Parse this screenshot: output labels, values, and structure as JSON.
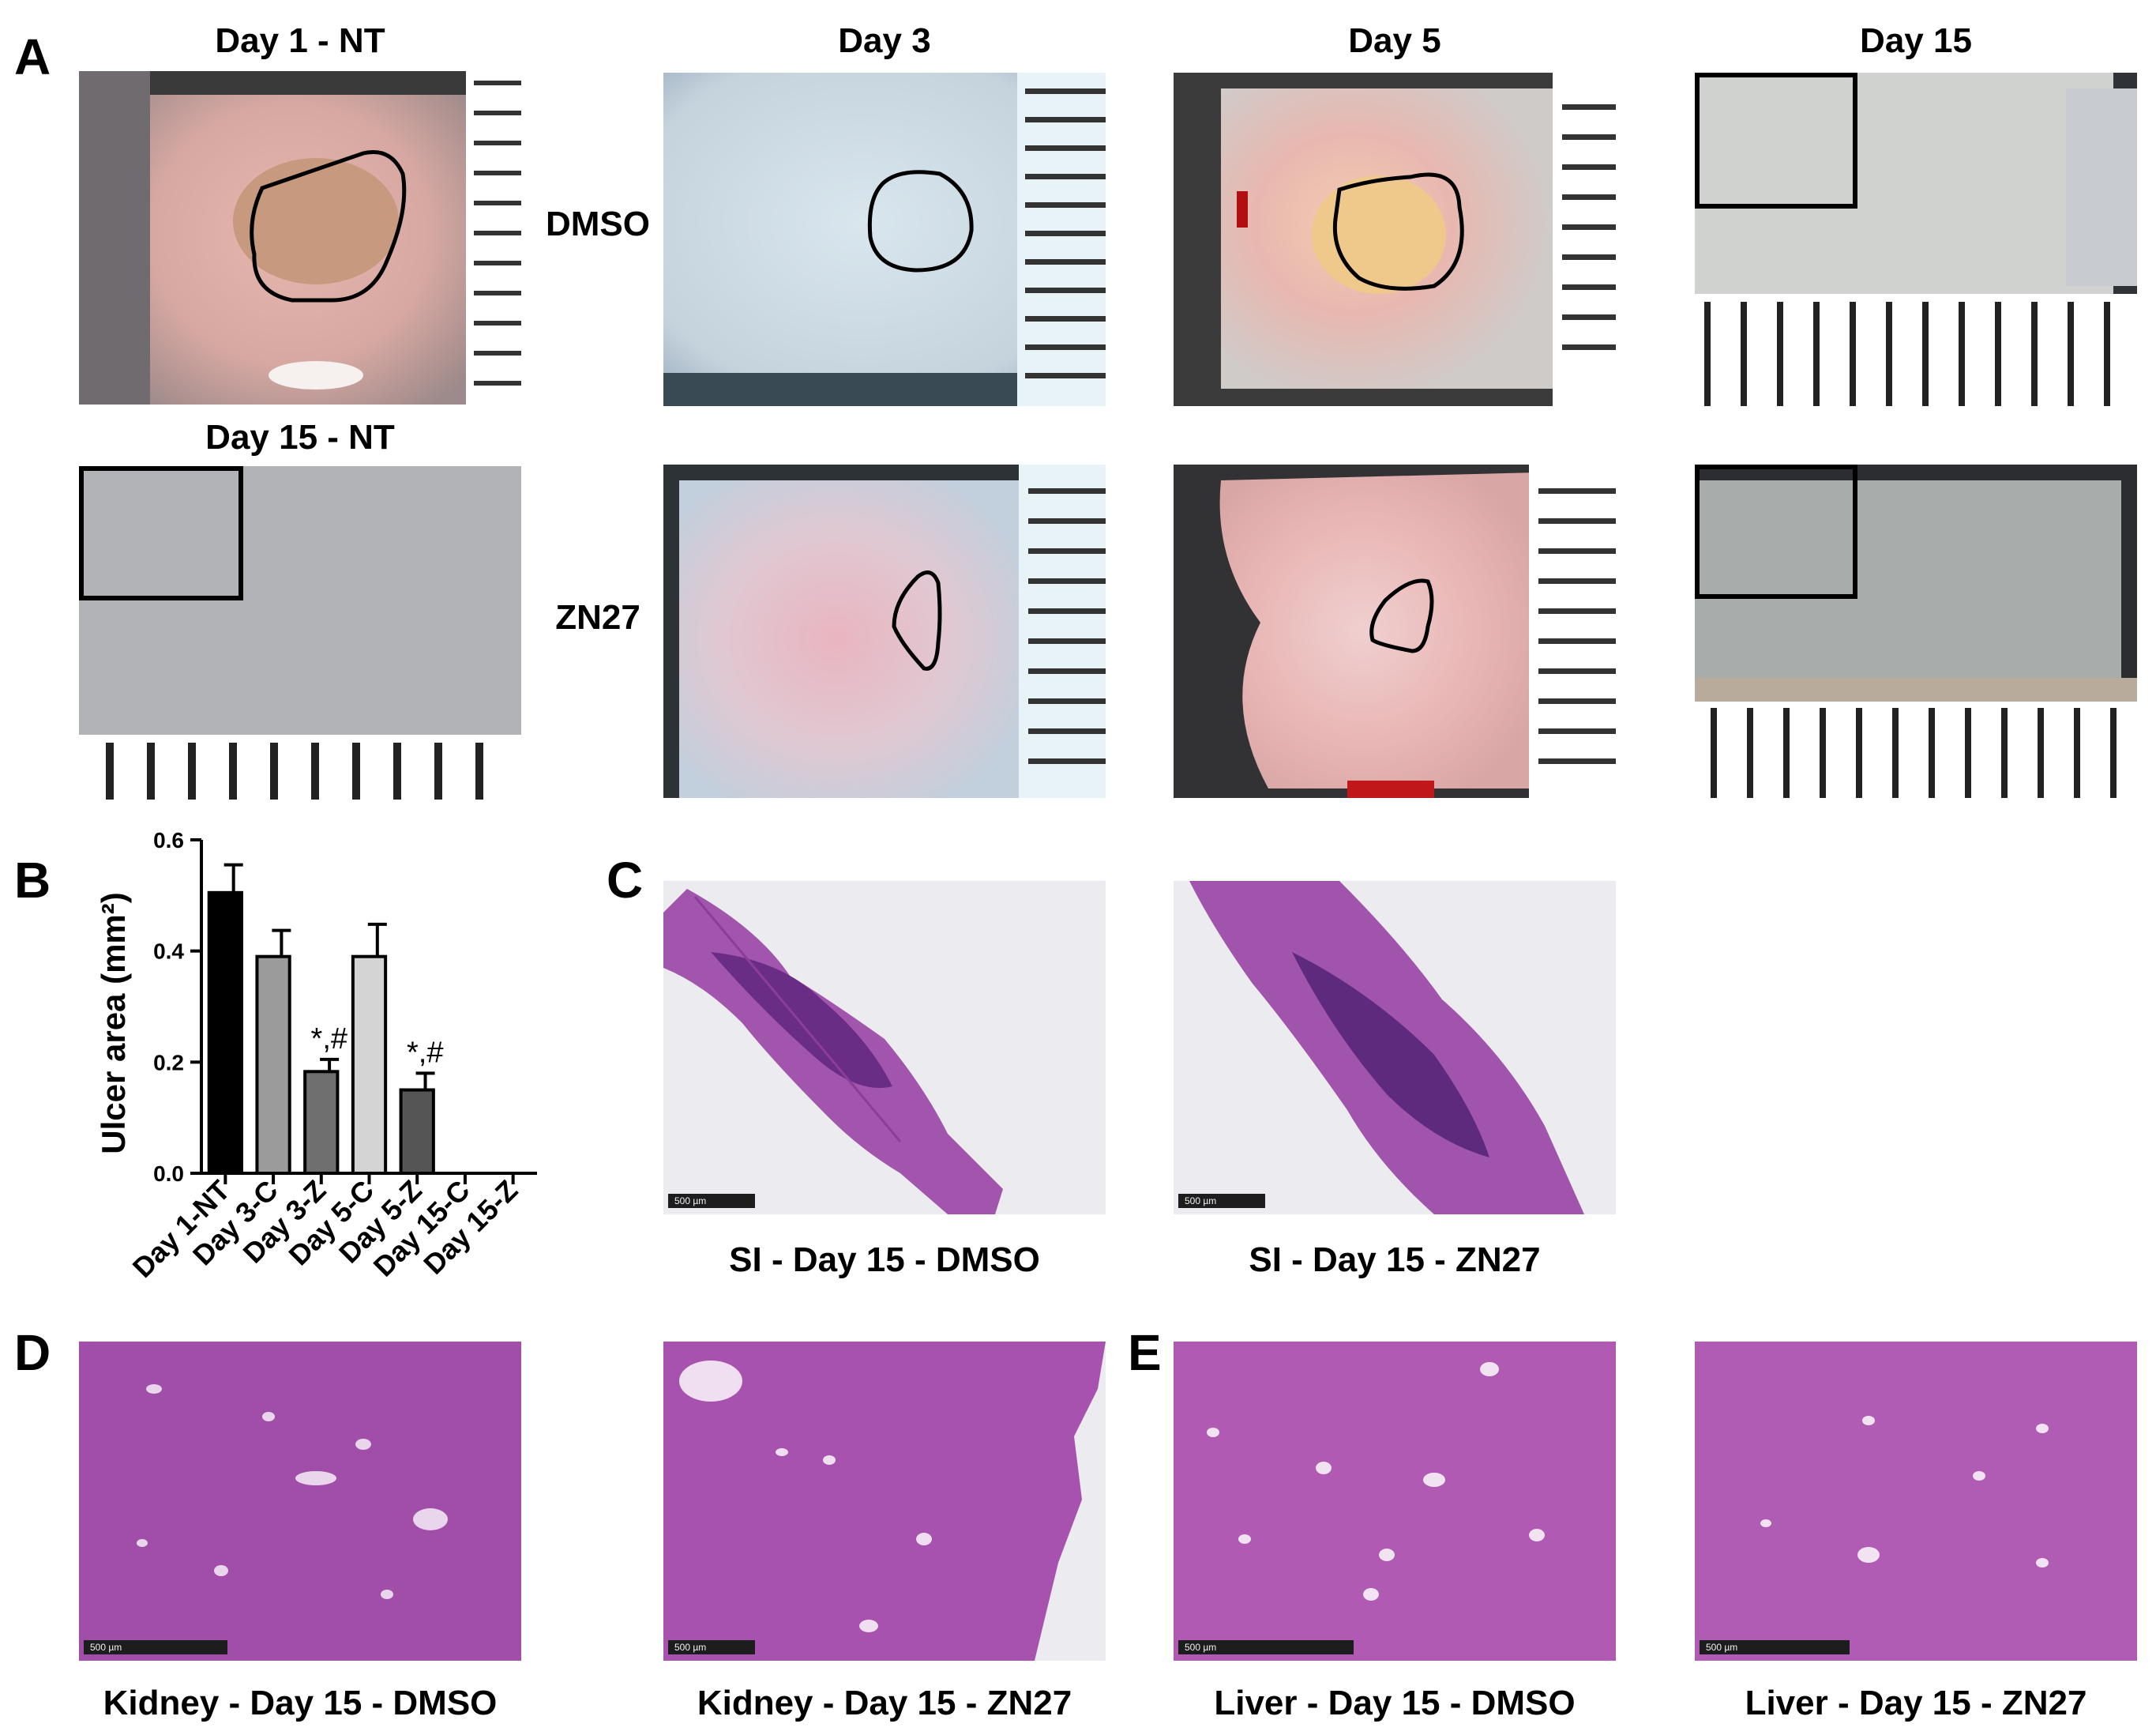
{
  "panels": {
    "A": "A",
    "B": "B",
    "C": "C",
    "D": "D",
    "E": "E"
  },
  "panel_a": {
    "column_titles": [
      "Day 1 - NT",
      "Day 3",
      "Day 5",
      "Day 15"
    ],
    "row2_first_title": "Day 15 - NT",
    "row_labels": [
      "DMSO",
      "ZN27"
    ]
  },
  "panel_c": {
    "captions": [
      "SI - Day 15 - DMSO",
      "SI - Day 15 - ZN27"
    ],
    "scale_label": "500 µm"
  },
  "panel_d": {
    "captions": [
      "Kidney - Day 15 - DMSO",
      "Kidney - Day 15 - ZN27"
    ]
  },
  "panel_e": {
    "captions": [
      "Liver - Day 15 - DMSO",
      "Liver - Day 15 - ZN27"
    ]
  },
  "colors": {
    "bar_nt": "#000000",
    "bar_day3c": "#9b9b9b",
    "bar_day3z": "#6f6f6f",
    "bar_day5c": "#d4d4d4",
    "bar_day5z": "#555555",
    "he_stain": "#a64cae"
  },
  "chart_data": {
    "type": "bar",
    "ylabel": "Ulcer area (mm²)",
    "categories": [
      "Day 1-NT",
      "Day 3-C",
      "Day 3-Z",
      "Day 5-C",
      "Day 5-Z",
      "Day 15-C",
      "Day 15-Z"
    ],
    "values": [
      0.505,
      0.39,
      0.183,
      0.39,
      0.15,
      0,
      0
    ],
    "errors": [
      0.05,
      0.047,
      0.022,
      0.058,
      0.03,
      0,
      0
    ],
    "annotations": [
      "",
      "",
      "*,#",
      "",
      "*,#",
      "",
      ""
    ],
    "ylim": [
      0,
      0.6
    ],
    "yticks": [
      "0.0",
      "0.2",
      "0.4",
      "0.6"
    ],
    "grid": false
  }
}
